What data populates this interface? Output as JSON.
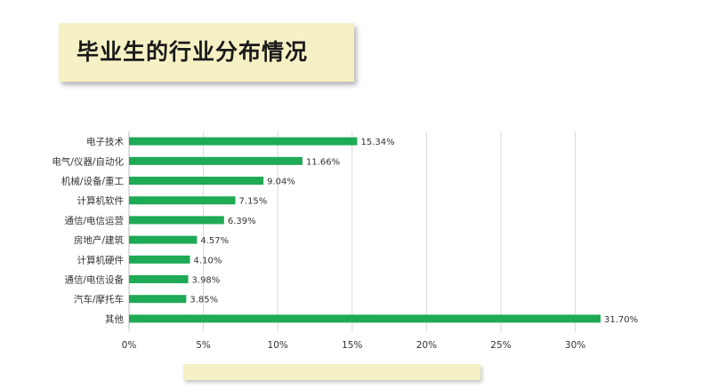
{
  "header": {
    "title": "毕业生的行业分布情况"
  },
  "chart_data": {
    "type": "bar",
    "orientation": "horizontal",
    "categories": [
      "电子技术",
      "电气/仪器/自动化",
      "机械/设备/重工",
      "计算机软件",
      "通信/电信运营",
      "房地产/建筑",
      "计算机硬件",
      "通信/电信设备",
      "汽车/摩托车",
      "其他"
    ],
    "values": [
      15.34,
      11.66,
      9.04,
      7.15,
      6.39,
      4.57,
      4.1,
      3.98,
      3.85,
      31.7
    ],
    "value_labels": [
      "15.34%",
      "11.66%",
      "9.04%",
      "7.15%",
      "6.39%",
      "4.57%",
      "4.10%",
      "3.98%",
      "3.85%",
      "31.70%"
    ],
    "xlim": [
      0,
      32
    ],
    "ticks": [
      0,
      5,
      10,
      15,
      20,
      25,
      30
    ],
    "tick_labels": [
      "0%",
      "5%",
      "10%",
      "15%",
      "20%",
      "25%",
      "30%"
    ],
    "grid": true,
    "bar_color": "#1faa55",
    "grid_color": "#d9d9d9"
  }
}
